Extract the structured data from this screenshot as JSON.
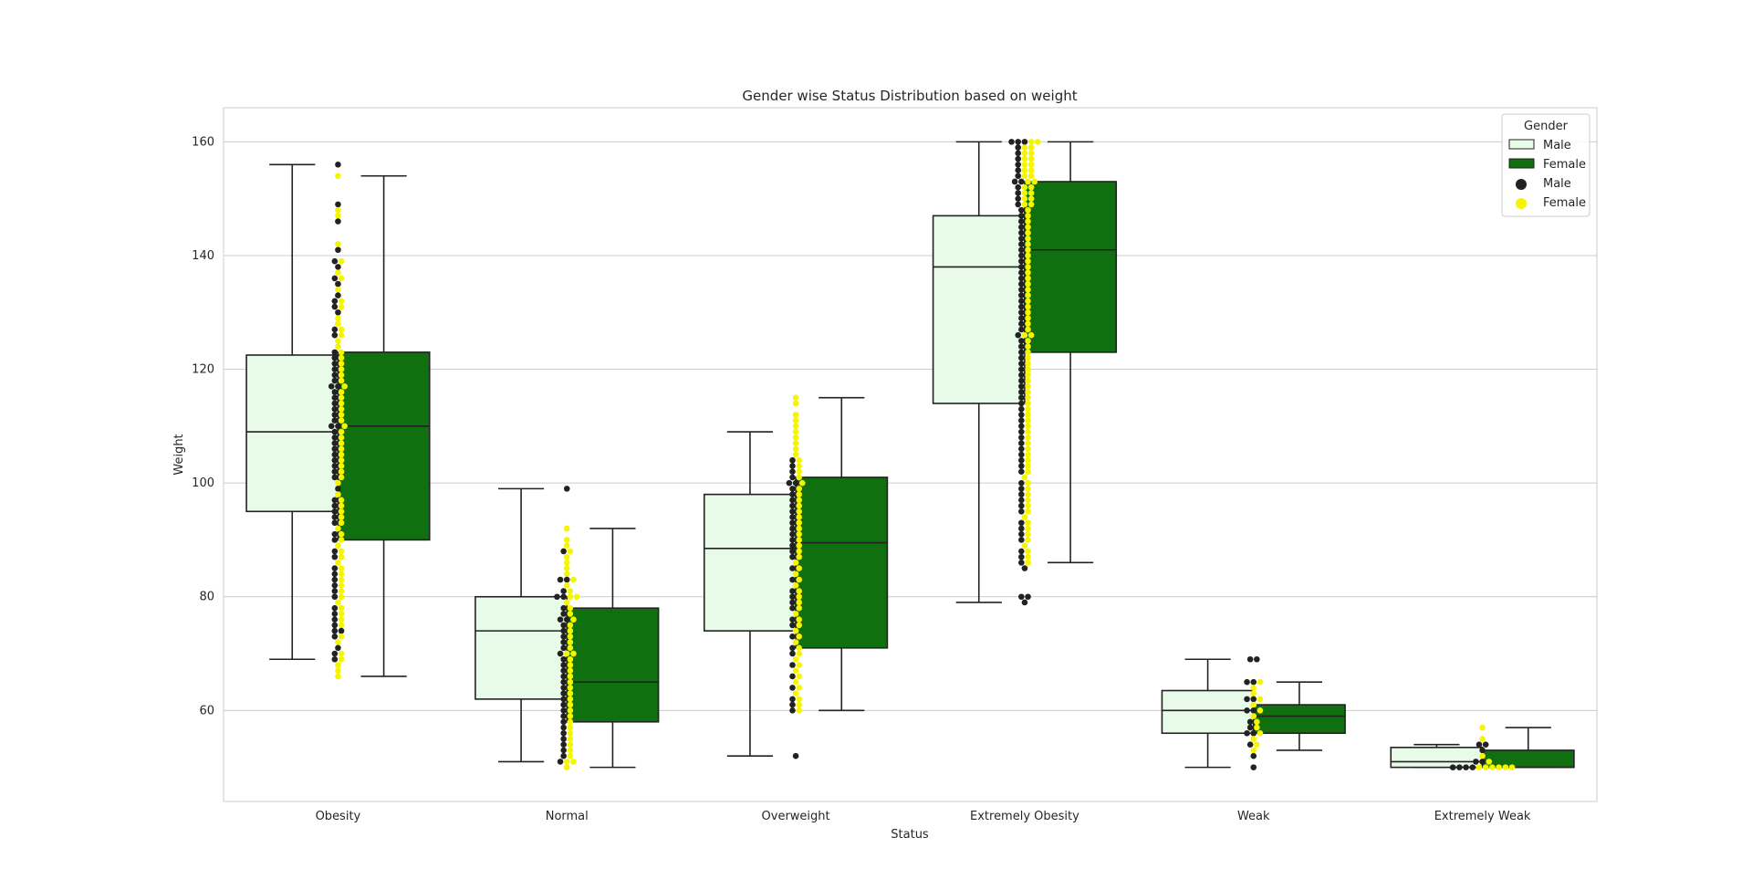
{
  "chart_data": {
    "type": "box",
    "title": "Gender wise Status Distribution based on weight",
    "xlabel": "Status",
    "ylabel": "Weight",
    "ylim": [
      44,
      166
    ],
    "yticks": [
      60,
      80,
      100,
      120,
      140,
      160
    ],
    "grid": "horizontal",
    "legend": {
      "title": "Gender",
      "placement": "top-right",
      "entries": [
        {
          "label": "Male",
          "kind": "box",
          "color": "#e8fbe8"
        },
        {
          "label": "Female",
          "kind": "box",
          "color": "#107010"
        },
        {
          "label": "Male",
          "kind": "point",
          "color": "#222222"
        },
        {
          "label": "Female",
          "kind": "point",
          "color": "#f5f500"
        }
      ]
    },
    "categories": [
      "Obesity",
      "Normal",
      "Overweight",
      "Extremely Obesity",
      "Weak",
      "Extremely Weak"
    ],
    "box_series": [
      {
        "name": "Male",
        "color": "#e8fbe8",
        "boxes": [
          {
            "whislo": 69,
            "q1": 95,
            "med": 109,
            "q3": 122.5,
            "whishi": 156
          },
          {
            "whislo": 51,
            "q1": 62,
            "med": 74,
            "q3": 80,
            "whishi": 99
          },
          {
            "whislo": 52,
            "q1": 74,
            "med": 88.5,
            "q3": 98,
            "whishi": 109
          },
          {
            "whislo": 79,
            "q1": 114,
            "med": 138,
            "q3": 147,
            "whishi": 160
          },
          {
            "whislo": 50,
            "q1": 56,
            "med": 60,
            "q3": 63.5,
            "whishi": 69
          },
          {
            "whislo": 50,
            "q1": 50,
            "med": 51,
            "q3": 53.5,
            "whishi": 54
          }
        ]
      },
      {
        "name": "Female",
        "color": "#107010",
        "boxes": [
          {
            "whislo": 66,
            "q1": 90,
            "med": 110,
            "q3": 123,
            "whishi": 154
          },
          {
            "whislo": 50,
            "q1": 58,
            "med": 65,
            "q3": 78,
            "whishi": 92
          },
          {
            "whislo": 60,
            "q1": 71,
            "med": 89.5,
            "q3": 101,
            "whishi": 115
          },
          {
            "whislo": 86,
            "q1": 123,
            "med": 141,
            "q3": 153,
            "whishi": 160
          },
          {
            "whislo": 53,
            "q1": 56,
            "med": 59,
            "q3": 61,
            "whishi": 65
          },
          {
            "whislo": 50,
            "q1": 50,
            "med": 50,
            "q3": 53,
            "whishi": 57
          }
        ]
      }
    ],
    "swarm_series": [
      {
        "name": "Male",
        "color": "#222222",
        "values": [
          [
            156,
            149,
            146,
            141,
            139,
            138,
            136,
            135,
            133,
            132,
            131,
            130,
            127,
            126,
            123,
            122,
            121,
            120,
            119,
            118,
            117,
            117,
            116,
            115,
            114,
            113,
            112,
            111,
            110,
            110,
            109,
            108,
            107,
            106,
            105,
            104,
            103,
            102,
            101,
            99,
            97,
            96,
            95,
            94,
            93,
            91,
            90,
            88,
            87,
            85,
            84,
            83,
            82,
            81,
            80,
            78,
            77,
            76,
            75,
            74,
            74,
            73,
            71,
            70,
            69
          ],
          [
            99,
            88,
            83,
            83,
            81,
            80,
            80,
            78,
            77,
            76,
            76,
            75,
            74,
            73,
            72,
            71,
            70,
            69,
            68,
            67,
            66,
            65,
            64,
            63,
            62,
            61,
            60,
            59,
            58,
            57,
            56,
            55,
            54,
            53,
            52,
            51
          ],
          [
            104,
            103,
            102,
            101,
            100,
            100,
            99,
            98,
            97,
            96,
            95,
            94,
            93,
            92,
            91,
            90,
            89,
            88,
            87,
            85,
            83,
            81,
            80,
            79,
            78,
            76,
            75,
            73,
            71,
            70,
            68,
            66,
            64,
            62,
            61,
            60,
            52
          ],
          [
            160,
            160,
            160,
            159,
            158,
            157,
            156,
            155,
            154,
            153,
            153,
            152,
            151,
            150,
            149,
            148,
            147,
            146,
            145,
            144,
            143,
            142,
            141,
            140,
            139,
            138,
            137,
            136,
            135,
            134,
            133,
            132,
            131,
            130,
            129,
            128,
            127,
            126,
            125,
            124,
            123,
            122,
            121,
            120,
            119,
            118,
            117,
            116,
            115,
            114,
            113,
            112,
            111,
            110,
            109,
            108,
            107,
            106,
            105,
            104,
            103,
            102,
            100,
            99,
            98,
            97,
            96,
            95,
            93,
            92,
            91,
            90,
            88,
            87,
            86,
            85,
            80,
            80,
            79
          ],
          [
            69,
            69,
            65,
            65,
            62,
            62,
            60,
            60,
            58,
            57,
            56,
            56,
            54,
            52,
            50
          ],
          [
            54,
            54,
            53,
            51,
            51,
            50,
            50,
            50,
            50
          ]
        ]
      },
      {
        "name": "Female",
        "color": "#f5f500",
        "values": [
          [
            154,
            148,
            147,
            142,
            139,
            137,
            136,
            134,
            132,
            131,
            129,
            128,
            127,
            126,
            125,
            124,
            123,
            122,
            121,
            120,
            119,
            118,
            117,
            116,
            115,
            114,
            113,
            112,
            111,
            110,
            109,
            108,
            107,
            106,
            105,
            104,
            103,
            102,
            101,
            100,
            98,
            97,
            96,
            95,
            94,
            93,
            92,
            91,
            90,
            89,
            88,
            87,
            86,
            85,
            84,
            83,
            82,
            81,
            80,
            79,
            78,
            77,
            76,
            75,
            73,
            72,
            70,
            69,
            68,
            67,
            66
          ],
          [
            92,
            90,
            89,
            88,
            87,
            86,
            85,
            84,
            83,
            82,
            81,
            80,
            80,
            79,
            78,
            77,
            76,
            75,
            74,
            73,
            72,
            71,
            70,
            70,
            69,
            68,
            67,
            66,
            65,
            64,
            63,
            62,
            61,
            60,
            59,
            58,
            57,
            56,
            55,
            54,
            53,
            52,
            51,
            51,
            50
          ],
          [
            115,
            114,
            112,
            111,
            110,
            109,
            108,
            107,
            106,
            105,
            104,
            103,
            102,
            101,
            100,
            99,
            98,
            97,
            96,
            95,
            94,
            93,
            92,
            91,
            90,
            89,
            88,
            87,
            86,
            85,
            84,
            83,
            82,
            81,
            80,
            79,
            78,
            77,
            76,
            75,
            74,
            73,
            72,
            71,
            70,
            69,
            68,
            67,
            66,
            65,
            64,
            63,
            62,
            61,
            60
          ],
          [
            160,
            160,
            159,
            159,
            158,
            158,
            157,
            157,
            156,
            156,
            155,
            155,
            154,
            154,
            153,
            153,
            152,
            152,
            151,
            151,
            150,
            150,
            149,
            149,
            148,
            147,
            146,
            145,
            144,
            143,
            142,
            141,
            140,
            139,
            138,
            137,
            136,
            135,
            134,
            133,
            132,
            131,
            130,
            129,
            128,
            127,
            126,
            126,
            125,
            124,
            123,
            122,
            121,
            120,
            119,
            118,
            117,
            116,
            115,
            114,
            113,
            112,
            111,
            110,
            109,
            108,
            107,
            106,
            105,
            104,
            103,
            102,
            101,
            100,
            99,
            98,
            97,
            96,
            95,
            94,
            93,
            92,
            91,
            90,
            89,
            88,
            87,
            86
          ],
          [
            65,
            64,
            63,
            62,
            61,
            60,
            59,
            58,
            57,
            56,
            55,
            54,
            53
          ],
          [
            57,
            55,
            52,
            51,
            50,
            50,
            50,
            50,
            50,
            50
          ]
        ]
      }
    ]
  }
}
